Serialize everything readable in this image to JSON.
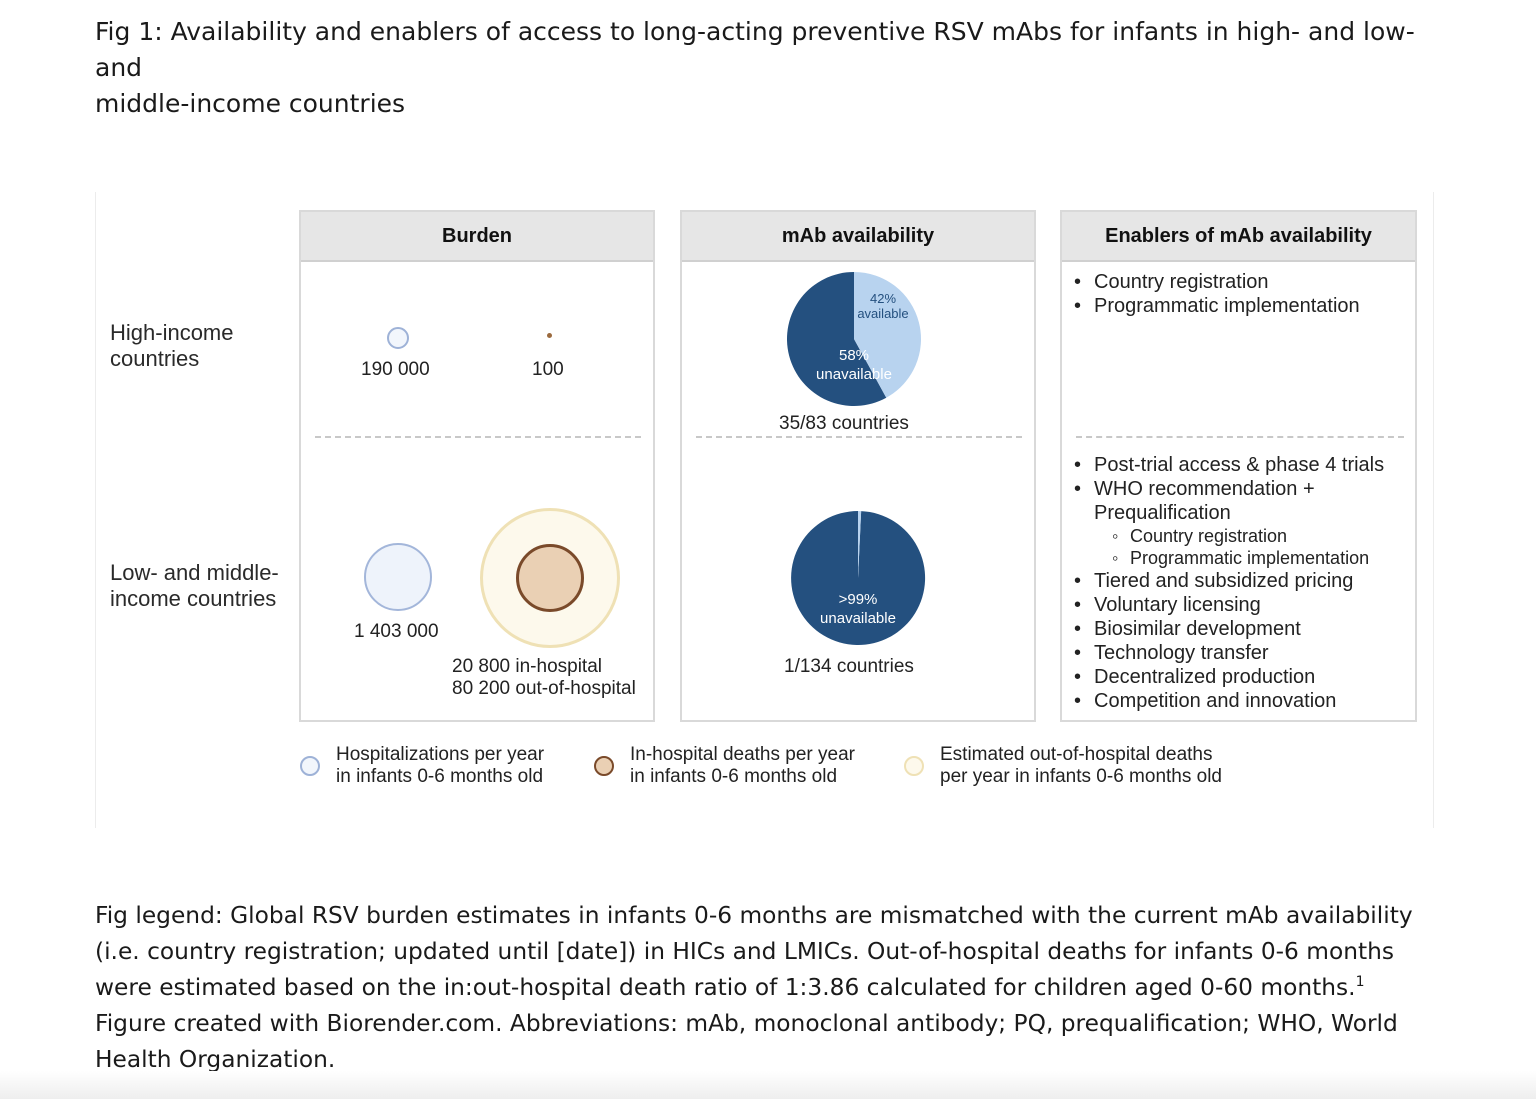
{
  "caption": {
    "line1": "Fig 1:  Availability and enablers of access to long-acting preventive RSV mAbs for infants in high- and low- and",
    "line2": "middle-income countries"
  },
  "rows": {
    "high": [
      "High-income",
      "countries"
    ],
    "low": [
      "Low- and middle-",
      "income countries"
    ]
  },
  "panels": {
    "burden": {
      "title": "Burden",
      "high_hosp": "190 000",
      "high_deaths": "100",
      "low_hosp": "1 403 000",
      "low_deaths_line1": "20 800 in-hospital",
      "low_deaths_line2": "80 200 out-of-hospital"
    },
    "availability": {
      "title": "mAb availability",
      "high": {
        "available_pct": 42,
        "available_label": [
          "42%",
          "available"
        ],
        "unavailable_label": [
          "58%",
          "unavailable"
        ],
        "countries": "35/83 countries"
      },
      "low": {
        "available_pct": 0.75,
        "unavailable_label": [
          ">99%",
          "unavailable"
        ],
        "countries": "1/134 countries"
      }
    },
    "enablers": {
      "title": "Enablers of mAb availability",
      "high": [
        "Country registration",
        "Programmatic implementation"
      ],
      "low": {
        "b1": "Post-trial access & phase 4 trials",
        "b2a": "WHO recommendation +",
        "b2b": "Prequalification",
        "s1": "Country registration",
        "s2": "Programmatic implementation",
        "b3": "Tiered and subsidized pricing",
        "b4": "Voluntary licensing",
        "b5": "Biosimilar development",
        "b6": "Technology transfer",
        "b7": "Decentralized production",
        "b8": "Competition and innovation"
      }
    }
  },
  "legend": {
    "hosp": [
      "Hospitalizations per year",
      "in infants 0-6 months old"
    ],
    "inhosp": [
      "In-hospital deaths per year",
      "in infants 0-6 months old"
    ],
    "outhosp": [
      "Estimated out-of-hospital deaths",
      "per year in infants 0-6 months old"
    ]
  },
  "fig_legend": {
    "part1": "Fig legend: Global RSV burden estimates in infants 0-6 months are mismatched with the current mAb availability (i.e. country registration; updated until [date]) in HICs and LMICs. Out-of-hospital deaths for infants 0-6 months were estimated based on the in:out-hospital death ratio of 1:3.86 calculated for children aged 0-60 months.",
    "sup": "1",
    "part2": " Figure created with Biorender.com. Abbreviations: mAb, monoclonal antibody; PQ, prequalification; WHO, World Health Organization."
  },
  "colors": {
    "unavailable": "#24507f",
    "available": "#b8d3ef",
    "hosp_fill": "#eef3fb",
    "hosp_stroke": "#a3b6da",
    "inhosp_fill": "#ead0b4",
    "inhosp_stroke": "#7a4a2a",
    "outhosp_fill": "#fdf9ec",
    "outhosp_stroke": "#efe1b5"
  }
}
